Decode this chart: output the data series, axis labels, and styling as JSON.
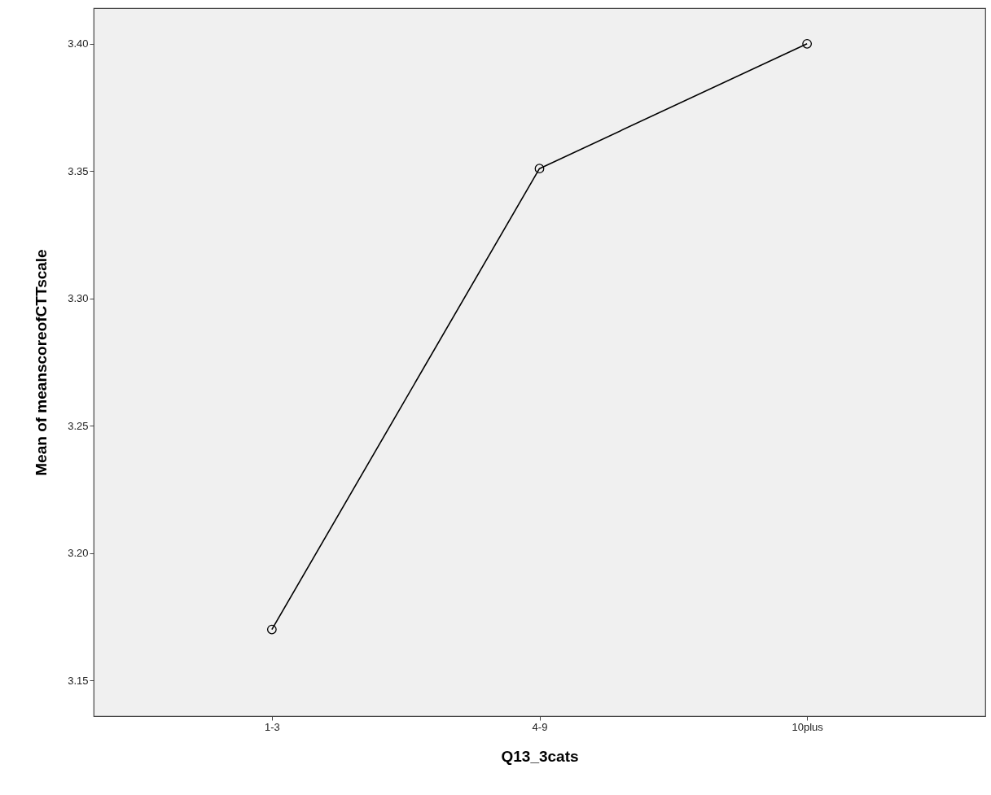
{
  "chart_data": {
    "type": "line",
    "xlabel": "Q13_3cats",
    "ylabel": "Mean of meanscoreofCTTscale",
    "categories": [
      "1-3",
      "4-9",
      "10plus"
    ],
    "series": [
      {
        "color": "#000000",
        "values": [
          3.17,
          3.351,
          3.4
        ]
      }
    ],
    "ylim": [
      3.136,
      3.414
    ],
    "yticks": [
      {
        "value": 3.15,
        "label": "3.15"
      },
      {
        "value": 3.2,
        "label": "3.20"
      },
      {
        "value": 3.25,
        "label": "3.25"
      },
      {
        "value": 3.3,
        "label": "3.30"
      },
      {
        "value": 3.35,
        "label": "3.35"
      },
      {
        "value": 3.4,
        "label": "3.40"
      }
    ],
    "marker": "circle",
    "line_style": "solid"
  }
}
